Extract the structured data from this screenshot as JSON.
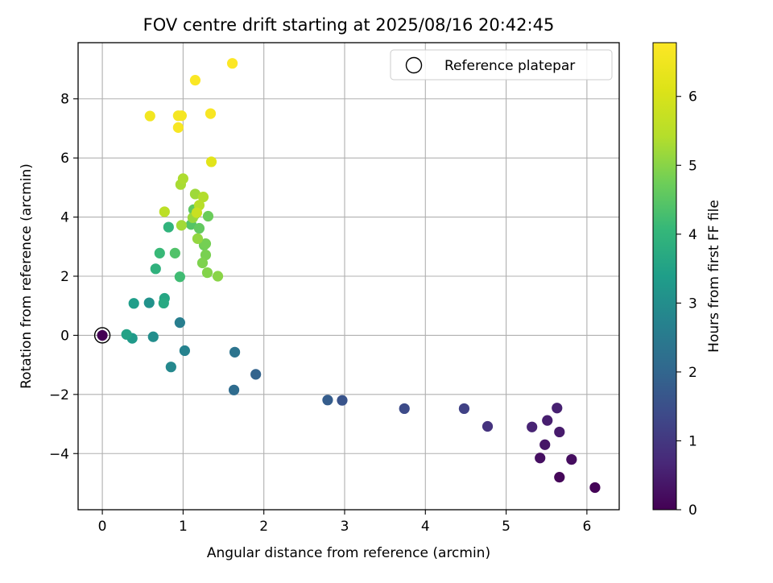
{
  "chart_data": {
    "type": "scatter",
    "title": "FOV centre drift starting at 2025/08/16 20:42:45",
    "xlabel": "Angular distance from reference (arcmin)",
    "ylabel": "Rotation from reference (arcmin)",
    "colorbar_label": "Hours from first FF file",
    "xlim": [
      -0.3,
      6.4
    ],
    "ylim": [
      -5.9,
      9.9
    ],
    "x_ticks": [
      0,
      1,
      2,
      3,
      4,
      5,
      6
    ],
    "y_ticks": [
      -4,
      -2,
      0,
      2,
      4,
      6,
      8
    ],
    "colorbar_range": [
      0,
      6.78
    ],
    "colorbar_ticks": [
      0,
      1,
      2,
      3,
      4,
      5,
      6
    ],
    "colormap": "viridis",
    "grid": true,
    "legend_position": "top-right",
    "legend": [
      {
        "label": "Reference platepar",
        "marker": "open-circle",
        "color": "#000000"
      }
    ],
    "reference_point": {
      "x": 0,
      "y": 0
    },
    "points": [
      {
        "x": 0.0,
        "y": 0.0,
        "h": 0.0
      },
      {
        "x": 6.1,
        "y": -5.15,
        "h": 0.05
      },
      {
        "x": 5.66,
        "y": -4.8,
        "h": 0.1
      },
      {
        "x": 5.81,
        "y": -4.2,
        "h": 0.2
      },
      {
        "x": 5.42,
        "y": -4.15,
        "h": 0.25
      },
      {
        "x": 5.48,
        "y": -3.7,
        "h": 0.35
      },
      {
        "x": 5.66,
        "y": -3.27,
        "h": 0.45
      },
      {
        "x": 5.51,
        "y": -2.88,
        "h": 0.5
      },
      {
        "x": 5.63,
        "y": -2.46,
        "h": 0.55
      },
      {
        "x": 5.32,
        "y": -3.1,
        "h": 0.6
      },
      {
        "x": 4.77,
        "y": -3.08,
        "h": 0.9
      },
      {
        "x": 4.48,
        "y": -2.48,
        "h": 1.2
      },
      {
        "x": 3.74,
        "y": -2.48,
        "h": 1.4
      },
      {
        "x": 2.97,
        "y": -2.2,
        "h": 1.6
      },
      {
        "x": 2.79,
        "y": -2.19,
        "h": 1.8
      },
      {
        "x": 1.9,
        "y": -1.32,
        "h": 1.95
      },
      {
        "x": 1.63,
        "y": -1.85,
        "h": 2.15
      },
      {
        "x": 1.64,
        "y": -0.57,
        "h": 2.35
      },
      {
        "x": 1.02,
        "y": -0.52,
        "h": 2.7
      },
      {
        "x": 0.96,
        "y": 0.43,
        "h": 2.6
      },
      {
        "x": 0.85,
        "y": -1.07,
        "h": 2.85
      },
      {
        "x": 0.63,
        "y": -0.05,
        "h": 3.0
      },
      {
        "x": 0.58,
        "y": 1.1,
        "h": 3.1
      },
      {
        "x": 0.37,
        "y": -0.1,
        "h": 3.3
      },
      {
        "x": 0.39,
        "y": 1.08,
        "h": 3.4
      },
      {
        "x": 0.3,
        "y": 0.03,
        "h": 3.5
      },
      {
        "x": 0.77,
        "y": 1.25,
        "h": 3.6
      },
      {
        "x": 0.76,
        "y": 1.09,
        "h": 3.7
      },
      {
        "x": 0.66,
        "y": 2.25,
        "h": 3.9
      },
      {
        "x": 0.82,
        "y": 3.66,
        "h": 3.95
      },
      {
        "x": 0.71,
        "y": 2.78,
        "h": 4.1
      },
      {
        "x": 0.96,
        "y": 1.98,
        "h": 4.2
      },
      {
        "x": 0.9,
        "y": 2.78,
        "h": 4.4
      },
      {
        "x": 1.1,
        "y": 3.75,
        "h": 4.45
      },
      {
        "x": 1.15,
        "y": 4.1,
        "h": 4.5
      },
      {
        "x": 1.13,
        "y": 4.25,
        "h": 4.55
      },
      {
        "x": 1.2,
        "y": 3.62,
        "h": 4.6
      },
      {
        "x": 1.31,
        "y": 4.03,
        "h": 4.7
      },
      {
        "x": 1.26,
        "y": 3.05,
        "h": 4.75
      },
      {
        "x": 1.28,
        "y": 3.1,
        "h": 4.8
      },
      {
        "x": 1.28,
        "y": 2.72,
        "h": 4.85
      },
      {
        "x": 1.24,
        "y": 2.45,
        "h": 4.9
      },
      {
        "x": 1.3,
        "y": 2.12,
        "h": 4.95
      },
      {
        "x": 1.43,
        "y": 2.0,
        "h": 5.0
      },
      {
        "x": 1.18,
        "y": 3.27,
        "h": 5.1
      },
      {
        "x": 1.12,
        "y": 3.98,
        "h": 5.15
      },
      {
        "x": 1.15,
        "y": 4.78,
        "h": 5.2
      },
      {
        "x": 0.98,
        "y": 3.72,
        "h": 5.25
      },
      {
        "x": 0.97,
        "y": 5.1,
        "h": 5.3
      },
      {
        "x": 1.0,
        "y": 5.3,
        "h": 5.35
      },
      {
        "x": 1.25,
        "y": 4.68,
        "h": 5.4
      },
      {
        "x": 1.2,
        "y": 4.4,
        "h": 5.45
      },
      {
        "x": 0.77,
        "y": 4.18,
        "h": 5.55
      },
      {
        "x": 1.17,
        "y": 4.15,
        "h": 5.75
      },
      {
        "x": 1.35,
        "y": 5.87,
        "h": 6.2
      },
      {
        "x": 0.59,
        "y": 7.42,
        "h": 6.55
      },
      {
        "x": 0.94,
        "y": 7.43,
        "h": 6.6
      },
      {
        "x": 0.98,
        "y": 7.43,
        "h": 6.62
      },
      {
        "x": 0.94,
        "y": 7.03,
        "h": 6.65
      },
      {
        "x": 1.34,
        "y": 7.5,
        "h": 6.68
      },
      {
        "x": 1.15,
        "y": 8.63,
        "h": 6.72
      },
      {
        "x": 1.61,
        "y": 9.2,
        "h": 6.76
      }
    ]
  }
}
